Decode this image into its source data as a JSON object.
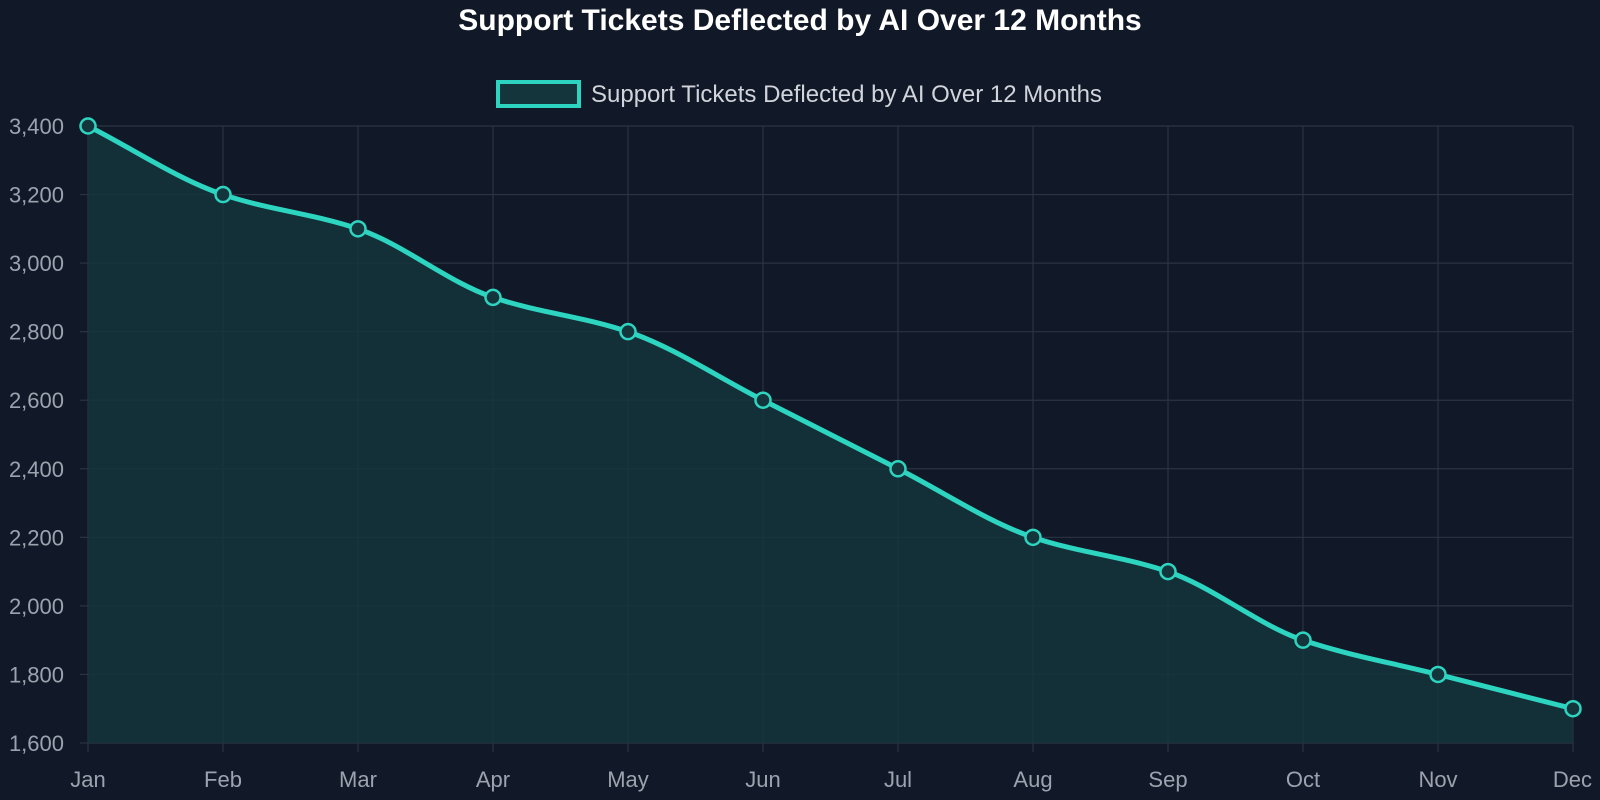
{
  "chart_data": {
    "type": "area",
    "title": "Support Tickets Deflected by AI Over 12 Months",
    "categories": [
      "Jan",
      "Feb",
      "Mar",
      "Apr",
      "May",
      "Jun",
      "Jul",
      "Aug",
      "Sep",
      "Oct",
      "Nov",
      "Dec"
    ],
    "series": [
      {
        "name": "Support Tickets Deflected by AI Over 12 Months",
        "values": [
          3400,
          3200,
          3100,
          2900,
          2800,
          2600,
          2400,
          2200,
          2100,
          1900,
          1800,
          1700
        ]
      }
    ],
    "y_ticks": [
      "1,600",
      "1,800",
      "2,000",
      "2,200",
      "2,400",
      "2,600",
      "2,800",
      "3,000",
      "3,200",
      "3,400"
    ],
    "ylim": [
      1600,
      3400
    ],
    "xlabel": "",
    "ylabel": "",
    "grid": true,
    "legend_position": "top-center",
    "colors": {
      "background": "#111827",
      "line": "#2dd4bf",
      "fill": "#14353c",
      "grid": "#2a3442",
      "tick_text": "#9ca3af",
      "legend_text": "#d1d5db",
      "title_text": "#ffffff"
    }
  }
}
